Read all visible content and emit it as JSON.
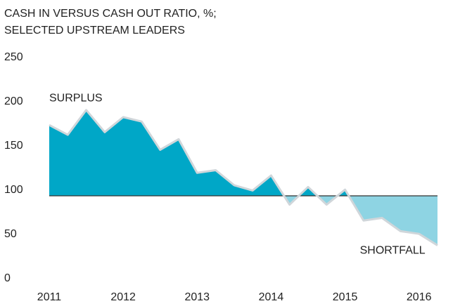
{
  "chart_data": {
    "type": "area",
    "title": [
      "CASH IN VERSUS CASH OUT RATIO, %;",
      "SELECTED UPSTREAM LEADERS"
    ],
    "x": [
      2011,
      2011.25,
      2011.5,
      2011.75,
      2012,
      2012.25,
      2012.5,
      2012.75,
      2013,
      2013.25,
      2013.5,
      2013.75,
      2014,
      2014.25,
      2014.5,
      2014.75,
      2015,
      2015.25,
      2015.5,
      2015.75,
      2016,
      2016.25
    ],
    "values": [
      180,
      169,
      197,
      172,
      189,
      184,
      152,
      164,
      126,
      129,
      112,
      106,
      123,
      90,
      110,
      90,
      107,
      72,
      75,
      60,
      57,
      44
    ],
    "baseline": 100,
    "color_above": "#00a7c7",
    "color_below": "#8ed4e3",
    "line_color": "#d0d6da",
    "annotations": [
      {
        "text": "SURPLUS",
        "x": 2011,
        "y": 210
      },
      {
        "text": "SHORTFALL",
        "x": 2015.2,
        "y": 38
      }
    ],
    "xlim": [
      2011,
      2016.25
    ],
    "xticks": [
      2011,
      2012,
      2013,
      2014,
      2015,
      2016
    ],
    "ylim": [
      0,
      250
    ],
    "yticks": [
      0,
      50,
      100,
      150,
      200,
      250
    ],
    "grid": false
  }
}
